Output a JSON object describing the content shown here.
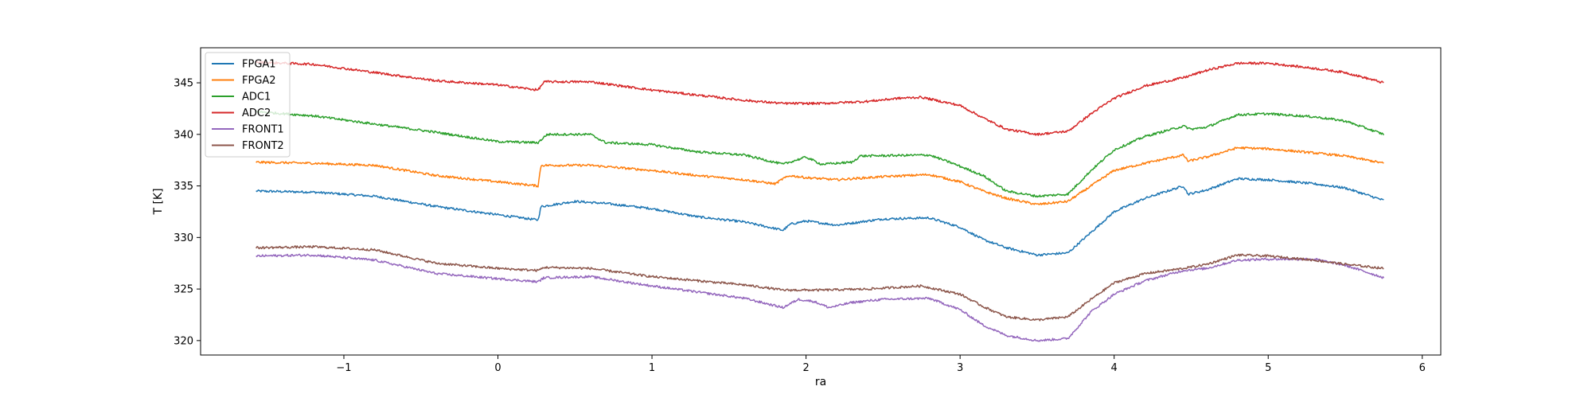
{
  "chart_data": {
    "type": "line",
    "title": "",
    "xlabel": "ra",
    "ylabel": "T [K]",
    "xlim": [
      -1.93,
      6.12
    ],
    "ylim": [
      318.6,
      348.4
    ],
    "xticks": [
      -1,
      0,
      1,
      2,
      3,
      4,
      5,
      6
    ],
    "yticks": [
      320,
      325,
      330,
      335,
      340,
      345
    ],
    "grid": false,
    "legend_position": "top-left",
    "series": [
      {
        "name": "FPGA1",
        "color": "#1f77b4",
        "points": [
          [
            -1.57,
            334.5
          ],
          [
            -1.2,
            334.4
          ],
          [
            -0.8,
            334.0
          ],
          [
            -0.4,
            333.0
          ],
          [
            0.0,
            332.2
          ],
          [
            0.26,
            331.7
          ],
          [
            0.28,
            333.0
          ],
          [
            0.5,
            333.5
          ],
          [
            0.7,
            333.3
          ],
          [
            1.0,
            332.8
          ],
          [
            1.3,
            332.0
          ],
          [
            1.6,
            331.5
          ],
          [
            1.85,
            330.7
          ],
          [
            1.9,
            331.3
          ],
          [
            2.0,
            331.6
          ],
          [
            2.2,
            331.2
          ],
          [
            2.5,
            331.8
          ],
          [
            2.8,
            331.9
          ],
          [
            3.0,
            331.0
          ],
          [
            3.15,
            329.8
          ],
          [
            3.3,
            329.0
          ],
          [
            3.5,
            328.3
          ],
          [
            3.7,
            328.5
          ],
          [
            3.85,
            330.5
          ],
          [
            4.0,
            332.5
          ],
          [
            4.2,
            333.8
          ],
          [
            4.45,
            335.0
          ],
          [
            4.48,
            334.2
          ],
          [
            4.6,
            334.6
          ],
          [
            4.8,
            335.7
          ],
          [
            5.0,
            335.6
          ],
          [
            5.3,
            335.2
          ],
          [
            5.5,
            334.8
          ],
          [
            5.75,
            333.6
          ]
        ]
      },
      {
        "name": "FPGA2",
        "color": "#ff7f0e",
        "points": [
          [
            -1.57,
            337.3
          ],
          [
            -1.2,
            337.2
          ],
          [
            -0.8,
            337.0
          ],
          [
            -0.4,
            336.0
          ],
          [
            0.0,
            335.4
          ],
          [
            0.26,
            335.0
          ],
          [
            0.28,
            337.0
          ],
          [
            0.6,
            337.0
          ],
          [
            1.0,
            336.5
          ],
          [
            1.3,
            336.0
          ],
          [
            1.6,
            335.6
          ],
          [
            1.8,
            335.2
          ],
          [
            1.85,
            335.7
          ],
          [
            1.9,
            336.0
          ],
          [
            2.0,
            335.8
          ],
          [
            2.2,
            335.6
          ],
          [
            2.5,
            335.9
          ],
          [
            2.8,
            336.1
          ],
          [
            3.0,
            335.4
          ],
          [
            3.15,
            334.5
          ],
          [
            3.3,
            333.8
          ],
          [
            3.5,
            333.2
          ],
          [
            3.7,
            333.5
          ],
          [
            3.85,
            335.0
          ],
          [
            4.0,
            336.5
          ],
          [
            4.2,
            337.2
          ],
          [
            4.45,
            338.0
          ],
          [
            4.48,
            337.4
          ],
          [
            4.6,
            337.8
          ],
          [
            4.8,
            338.7
          ],
          [
            5.0,
            338.6
          ],
          [
            5.3,
            338.2
          ],
          [
            5.5,
            337.9
          ],
          [
            5.75,
            337.2
          ]
        ]
      },
      {
        "name": "ADC1",
        "color": "#2ca02c",
        "points": [
          [
            -1.57,
            342.2
          ],
          [
            -1.2,
            341.8
          ],
          [
            -0.8,
            341.0
          ],
          [
            -0.4,
            340.2
          ],
          [
            0.0,
            339.3
          ],
          [
            0.26,
            339.2
          ],
          [
            0.32,
            340.0
          ],
          [
            0.6,
            340.0
          ],
          [
            0.7,
            339.2
          ],
          [
            1.0,
            339.0
          ],
          [
            1.3,
            338.3
          ],
          [
            1.6,
            338.0
          ],
          [
            1.85,
            337.1
          ],
          [
            2.0,
            337.8
          ],
          [
            2.1,
            337.1
          ],
          [
            2.3,
            337.3
          ],
          [
            2.35,
            337.9
          ],
          [
            2.8,
            338.0
          ],
          [
            2.95,
            337.2
          ],
          [
            3.15,
            336.0
          ],
          [
            3.3,
            334.5
          ],
          [
            3.5,
            334.0
          ],
          [
            3.7,
            334.2
          ],
          [
            3.85,
            336.5
          ],
          [
            4.0,
            338.5
          ],
          [
            4.2,
            339.8
          ],
          [
            4.45,
            340.8
          ],
          [
            4.5,
            340.5
          ],
          [
            4.6,
            340.7
          ],
          [
            4.8,
            341.9
          ],
          [
            5.0,
            342.0
          ],
          [
            5.3,
            341.7
          ],
          [
            5.5,
            341.3
          ],
          [
            5.75,
            340.0
          ]
        ]
      },
      {
        "name": "ADC2",
        "color": "#d62728",
        "points": [
          [
            -1.57,
            347.0
          ],
          [
            -1.2,
            346.8
          ],
          [
            -0.8,
            346.0
          ],
          [
            -0.4,
            345.2
          ],
          [
            0.0,
            344.8
          ],
          [
            0.26,
            344.3
          ],
          [
            0.3,
            345.1
          ],
          [
            0.6,
            345.1
          ],
          [
            1.0,
            344.3
          ],
          [
            1.3,
            343.8
          ],
          [
            1.6,
            343.3
          ],
          [
            1.85,
            343.0
          ],
          [
            2.1,
            343.0
          ],
          [
            2.4,
            343.2
          ],
          [
            2.6,
            343.5
          ],
          [
            2.75,
            343.6
          ],
          [
            3.0,
            342.8
          ],
          [
            3.15,
            341.6
          ],
          [
            3.3,
            340.5
          ],
          [
            3.5,
            340.0
          ],
          [
            3.7,
            340.3
          ],
          [
            3.85,
            342.0
          ],
          [
            4.0,
            343.5
          ],
          [
            4.2,
            344.7
          ],
          [
            4.45,
            345.5
          ],
          [
            4.6,
            346.2
          ],
          [
            4.8,
            346.9
          ],
          [
            5.0,
            346.9
          ],
          [
            5.3,
            346.4
          ],
          [
            5.5,
            346.0
          ],
          [
            5.75,
            345.0
          ]
        ]
      },
      {
        "name": "FRONT1",
        "color": "#9467bd",
        "points": [
          [
            -1.57,
            328.2
          ],
          [
            -1.2,
            328.3
          ],
          [
            -0.8,
            327.8
          ],
          [
            -0.4,
            326.5
          ],
          [
            0.0,
            326.0
          ],
          [
            0.26,
            325.7
          ],
          [
            0.3,
            326.1
          ],
          [
            0.6,
            326.2
          ],
          [
            1.0,
            325.3
          ],
          [
            1.3,
            324.7
          ],
          [
            1.6,
            324.1
          ],
          [
            1.85,
            323.2
          ],
          [
            1.95,
            324.0
          ],
          [
            2.05,
            323.8
          ],
          [
            2.15,
            323.2
          ],
          [
            2.3,
            323.7
          ],
          [
            2.5,
            324.0
          ],
          [
            2.8,
            324.1
          ],
          [
            3.0,
            323.0
          ],
          [
            3.15,
            321.5
          ],
          [
            3.3,
            320.5
          ],
          [
            3.5,
            320.0
          ],
          [
            3.7,
            320.2
          ],
          [
            3.85,
            322.8
          ],
          [
            4.0,
            324.5
          ],
          [
            4.2,
            325.8
          ],
          [
            4.45,
            326.8
          ],
          [
            4.6,
            327.0
          ],
          [
            4.8,
            327.8
          ],
          [
            5.0,
            327.9
          ],
          [
            5.3,
            327.9
          ],
          [
            5.5,
            327.3
          ],
          [
            5.75,
            326.1
          ]
        ]
      },
      {
        "name": "FRONT2",
        "color": "#8c564b",
        "points": [
          [
            -1.57,
            329.0
          ],
          [
            -1.2,
            329.1
          ],
          [
            -0.8,
            328.8
          ],
          [
            -0.4,
            327.5
          ],
          [
            0.0,
            327.0
          ],
          [
            0.26,
            326.8
          ],
          [
            0.3,
            327.1
          ],
          [
            0.6,
            327.0
          ],
          [
            1.0,
            326.2
          ],
          [
            1.3,
            325.8
          ],
          [
            1.6,
            325.4
          ],
          [
            1.85,
            324.9
          ],
          [
            2.1,
            324.9
          ],
          [
            2.4,
            325.0
          ],
          [
            2.75,
            325.3
          ],
          [
            3.0,
            324.5
          ],
          [
            3.15,
            323.3
          ],
          [
            3.3,
            322.3
          ],
          [
            3.5,
            322.0
          ],
          [
            3.7,
            322.3
          ],
          [
            3.85,
            324.0
          ],
          [
            4.0,
            325.6
          ],
          [
            4.2,
            326.5
          ],
          [
            4.45,
            327.0
          ],
          [
            4.6,
            327.4
          ],
          [
            4.8,
            328.3
          ],
          [
            5.0,
            328.2
          ],
          [
            5.3,
            327.8
          ],
          [
            5.5,
            327.4
          ],
          [
            5.75,
            327.0
          ]
        ]
      }
    ]
  }
}
